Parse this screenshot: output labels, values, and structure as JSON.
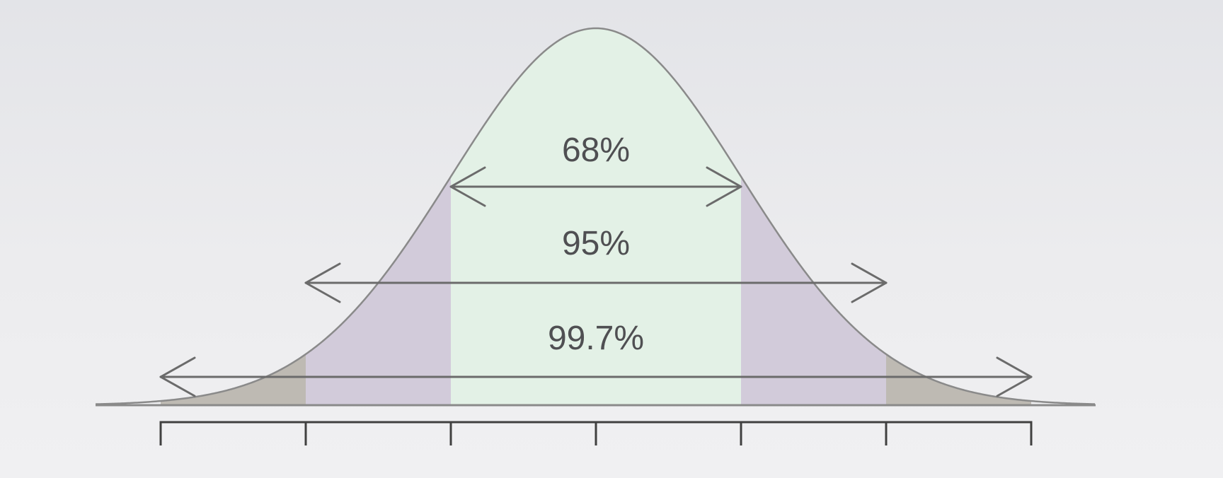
{
  "chart_data": {
    "type": "area",
    "title": "",
    "xlabel": "",
    "ylabel": "",
    "distribution": "normal",
    "mean": 0,
    "sd": 1,
    "xlim": [
      -3.3,
      3.3
    ],
    "ticks": [
      -3,
      -2,
      -1,
      0,
      1,
      2,
      3
    ],
    "tick_labels_shown": false,
    "grid": false,
    "legend": "none",
    "bands": [
      {
        "label": "68%",
        "from": -1,
        "to": 1,
        "color": "#e3f1e6"
      },
      {
        "label": "95%",
        "from": -2,
        "to": 2,
        "color": "#d2cbda"
      },
      {
        "label": "99.7%",
        "from": -3,
        "to": 3,
        "color": "#bebab3"
      }
    ],
    "colors": {
      "curve": "#8a8a8a",
      "arrow": "#6b6b6b",
      "axis": "#404040",
      "text": "#4f4f52"
    }
  }
}
